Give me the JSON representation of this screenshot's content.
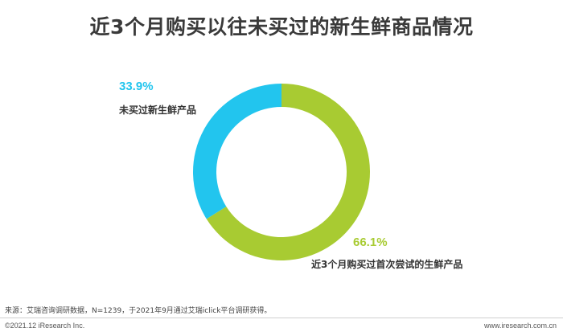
{
  "chart_data": {
    "type": "pie",
    "title": "近3个月购买以往未买过的新生鲜商品情况",
    "slices": [
      {
        "label": "近3个月购买过首次尝试的生鲜产品",
        "value": 66.1,
        "value_label": "66.1%",
        "color": "#a8cb32"
      },
      {
        "label": "未买过新生鲜产品",
        "value": 33.9,
        "value_label": "33.9%",
        "color": "#22c5ee"
      }
    ],
    "donut": true,
    "start_angle_deg": 0,
    "direction": "clockwise"
  },
  "footer": {
    "source": "来源：艾瑞咨询调研数据，N=1239，于2021年9月通过艾瑞iclick平台调研获得。",
    "copyright": "©2021.12 iResearch Inc.",
    "website": "www.iresearch.com.cn"
  }
}
